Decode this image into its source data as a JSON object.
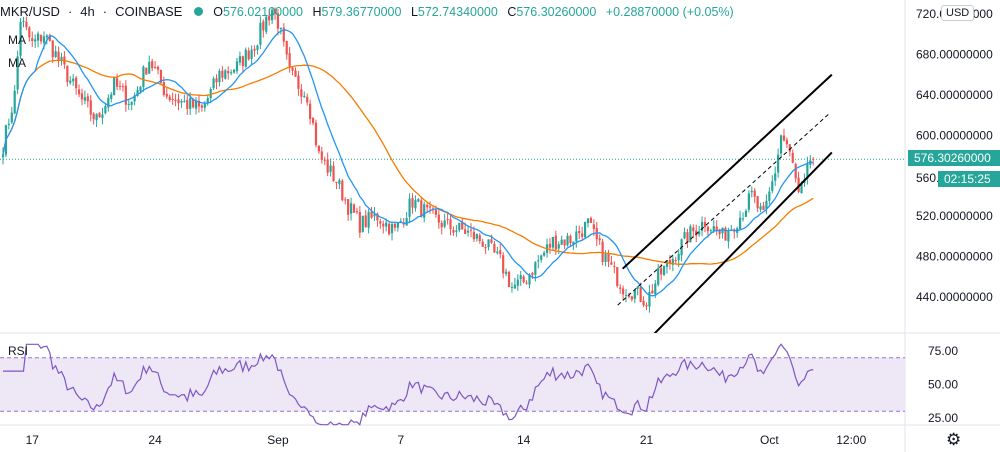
{
  "header": {
    "symbol": "MKR/USD",
    "interval": "4h",
    "exchange": "COINBASE",
    "status_color": "#26a69a",
    "open_key": "O",
    "open": "576.02100000",
    "high_key": "H",
    "high": "579.36770000",
    "low_key": "L",
    "low": "572.74340000",
    "close_key": "C",
    "close": "576.30260000",
    "change": "+0.28870000 (+0.05%)"
  },
  "indicators": {
    "ma1": "MA",
    "ma2": "MA",
    "rsi": "RSI"
  },
  "currency": "USD",
  "price_tag": {
    "value": "576.30260000",
    "countdown": "02:15:25",
    "partial_label": "560."
  },
  "colors": {
    "up": "#26a69a",
    "down": "#ef5350",
    "ma_fast": "#2196f3",
    "ma_slow": "#f57c00",
    "rsi_line": "#7e57c2",
    "rsi_band": "#ede7f6",
    "channel": "#000000",
    "last_price": "#26a69a"
  },
  "chart_data": [
    {
      "type": "candlestick",
      "title": "",
      "y_range": [
        400,
        730
      ],
      "y_ticks": [
        "720.00000000",
        "680.00000000",
        "640.00000000",
        "600.00000000",
        "520.00000000",
        "480.00000000",
        "440.00000000"
      ],
      "y_tick_values": [
        720,
        680,
        640,
        600,
        520,
        480,
        440
      ],
      "x_ticks": [
        "17",
        "24",
        "Sep",
        "7",
        "14",
        "21",
        "Oct",
        "12:00"
      ],
      "x_tick_candle_index": [
        10,
        52,
        94,
        136,
        178,
        220,
        262,
        290
      ],
      "last_price": 576.3026,
      "anchors": [
        [
          0,
          590
        ],
        [
          4,
          640
        ],
        [
          6,
          715
        ],
        [
          10,
          690
        ],
        [
          14,
          700
        ],
        [
          20,
          670
        ],
        [
          26,
          638
        ],
        [
          32,
          615
        ],
        [
          38,
          650
        ],
        [
          44,
          632
        ],
        [
          50,
          675
        ],
        [
          56,
          640
        ],
        [
          62,
          632
        ],
        [
          68,
          625
        ],
        [
          74,
          660
        ],
        [
          80,
          668
        ],
        [
          86,
          690
        ],
        [
          90,
          715
        ],
        [
          92,
          725
        ],
        [
          94,
          712
        ],
        [
          98,
          660
        ],
        [
          104,
          640
        ],
        [
          108,
          580
        ],
        [
          114,
          555
        ],
        [
          118,
          530
        ],
        [
          122,
          512
        ],
        [
          128,
          520
        ],
        [
          134,
          505
        ],
        [
          140,
          535
        ],
        [
          146,
          520
        ],
        [
          152,
          510
        ],
        [
          158,
          505
        ],
        [
          164,
          495
        ],
        [
          170,
          475
        ],
        [
          174,
          450
        ],
        [
          178,
          455
        ],
        [
          184,
          480
        ],
        [
          188,
          495
        ],
        [
          194,
          497
        ],
        [
          200,
          512
        ],
        [
          204,
          488
        ],
        [
          208,
          468
        ],
        [
          212,
          450
        ],
        [
          216,
          445
        ],
        [
          220,
          436
        ],
        [
          224,
          460
        ],
        [
          228,
          475
        ],
        [
          234,
          500
        ],
        [
          240,
          515
        ],
        [
          246,
          500
        ],
        [
          252,
          520
        ],
        [
          256,
          540
        ],
        [
          260,
          518
        ],
        [
          264,
          565
        ],
        [
          266,
          600
        ],
        [
          268,
          590
        ],
        [
          270,
          570
        ],
        [
          272,
          540
        ],
        [
          274,
          550
        ],
        [
          276,
          576.3
        ]
      ],
      "volatility": 8,
      "seed": 7,
      "ma_fast_period": 12,
      "ma_slow_period": 40,
      "channel": {
        "lower": [
          [
            602,
            467
          ],
          [
            640,
            467
          ]
        ],
        "upper_start_price": 468,
        "upper_end_price": 660,
        "lower_start_price": 397,
        "lower_end_price": 583,
        "mid_start_price": 432,
        "mid_end_price": 622,
        "start_index": 217,
        "end_index": 282
      }
    },
    {
      "type": "line",
      "name": "RSI",
      "y_range": [
        20,
        80
      ],
      "y_ticks": [
        "75.00",
        "50.00",
        "25.00"
      ],
      "y_tick_values": [
        75,
        50,
        25
      ],
      "band": [
        30,
        70
      ],
      "values_derived_from": "candles"
    }
  ]
}
